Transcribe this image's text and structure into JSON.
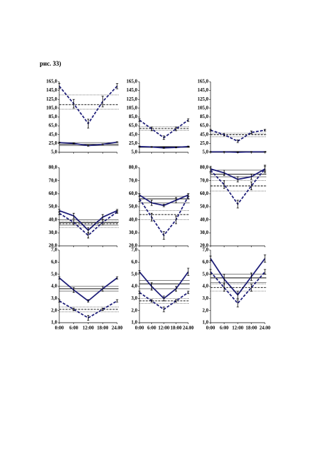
{
  "caption": "рис. 33)",
  "chart_data": [
    {
      "type": "line",
      "categories": [
        null,
        null,
        null,
        null,
        null
      ],
      "ylim": [
        5,
        165
      ],
      "yticks": [
        {
          "value": 5,
          "label": "5,0"
        },
        {
          "value": 25,
          "label": "25,0"
        },
        {
          "value": 45,
          "label": "45,0"
        },
        {
          "value": 65,
          "label": "65,0"
        },
        {
          "value": 85,
          "label": "85,0"
        },
        {
          "value": 105,
          "label": "105,0"
        },
        {
          "value": 125,
          "label": "125,0"
        },
        {
          "value": 145,
          "label": "145,0"
        },
        {
          "value": 165,
          "label": "165,0"
        }
      ],
      "series": [
        {
          "color": "#1f1f7a",
          "style": "dashed",
          "values": [
            155,
            115,
            70,
            120,
            155
          ],
          "errors": [
            6,
            10,
            10,
            12,
            6
          ],
          "hlines": [
            103,
            113,
            135
          ]
        },
        {
          "color": "#1f1f7a",
          "style": "solid",
          "values": [
            27,
            25,
            20,
            23,
            28
          ],
          "errors": [
            1,
            1,
            1,
            1,
            1
          ],
          "hlines": [
            20,
            23,
            27
          ]
        }
      ]
    },
    {
      "type": "line",
      "categories": [
        null,
        null,
        null,
        null,
        null
      ],
      "ylim": [
        5,
        165
      ],
      "yticks": [
        {
          "value": 5,
          "label": "5,0"
        },
        {
          "value": 25,
          "label": "25,0"
        },
        {
          "value": 45,
          "label": "45,0"
        },
        {
          "value": 65,
          "label": "65,0"
        },
        {
          "value": 85,
          "label": "85,0"
        },
        {
          "value": 105,
          "label": "105,0"
        },
        {
          "value": 125,
          "label": "125,0"
        },
        {
          "value": 145,
          "label": "145,0"
        },
        {
          "value": 165,
          "label": "165,0"
        }
      ],
      "series": [
        {
          "color": "#1f1f7a",
          "style": "dashed",
          "values": [
            78,
            58,
            38,
            58,
            78
          ],
          "errors": [
            3,
            4,
            4,
            4,
            3
          ],
          "hlines": [
            55,
            59,
            63
          ]
        },
        {
          "color": "#1f1f7a",
          "style": "solid",
          "values": [
            18,
            17,
            15,
            16,
            18
          ],
          "errors": [
            1,
            1,
            1,
            1,
            1
          ],
          "hlines": [
            16,
            17,
            18
          ]
        }
      ]
    },
    {
      "type": "line",
      "categories": [
        null,
        null,
        null,
        null,
        null
      ],
      "ylim": [
        5,
        165
      ],
      "yticks": [
        {
          "value": 5,
          "label": "5,0"
        },
        {
          "value": 25,
          "label": "25,0"
        },
        {
          "value": 45,
          "label": "45,0"
        },
        {
          "value": 65,
          "label": "65,0"
        },
        {
          "value": 85,
          "label": "85,0"
        },
        {
          "value": 105,
          "label": "105,0"
        },
        {
          "value": 125,
          "label": "125,0"
        },
        {
          "value": 145,
          "label": "145,0"
        },
        {
          "value": 165,
          "label": "165,0"
        }
      ],
      "series": [
        {
          "color": "#1f1f7a",
          "style": "dashed",
          "values": [
            55,
            45,
            30,
            50,
            55
          ],
          "errors": [
            2,
            3,
            3,
            3,
            2
          ],
          "hlines": [
            40,
            45,
            48
          ]
        },
        {
          "color": "#1f1f7a",
          "style": "solid",
          "values": [
            6,
            6,
            5,
            6,
            6
          ],
          "errors": [
            0.5,
            0.5,
            0.5,
            0.5,
            0.5
          ],
          "hlines": [
            5,
            6,
            7
          ]
        }
      ]
    },
    {
      "type": "line",
      "categories": [
        null,
        null,
        null,
        null,
        null
      ],
      "ylim": [
        20,
        80
      ],
      "yticks": [
        {
          "value": 20,
          "label": "20,0"
        },
        {
          "value": 30,
          "label": "30,0"
        },
        {
          "value": 40,
          "label": "40,0"
        },
        {
          "value": 50,
          "label": "50,0"
        },
        {
          "value": 60,
          "label": "60,0"
        },
        {
          "value": 70,
          "label": "70,0"
        },
        {
          "value": 80,
          "label": "80,0"
        }
      ],
      "series": [
        {
          "color": "#1f1f7a",
          "style": "solid",
          "values": [
            47,
            43,
            32,
            42,
            47
          ],
          "errors": [
            1,
            2,
            2,
            2,
            1
          ],
          "hlines": [
            36,
            38,
            40
          ]
        },
        {
          "color": "#1f1f7a",
          "style": "dashed",
          "values": [
            45,
            38,
            28,
            38,
            46
          ],
          "errors": [
            1,
            2,
            2,
            2,
            1
          ],
          "hlines": [
            34,
            37,
            39
          ]
        }
      ]
    },
    {
      "type": "line",
      "categories": [
        null,
        null,
        null,
        null,
        null
      ],
      "ylim": [
        20,
        80
      ],
      "yticks": [
        {
          "value": 20,
          "label": "20,0"
        },
        {
          "value": 30,
          "label": "30,0"
        },
        {
          "value": 40,
          "label": "40,0"
        },
        {
          "value": 50,
          "label": "50,0"
        },
        {
          "value": 60,
          "label": "60,0"
        },
        {
          "value": 70,
          "label": "70,0"
        },
        {
          "value": 80,
          "label": "80,0"
        }
      ],
      "series": [
        {
          "color": "#1f1f7a",
          "style": "solid",
          "values": [
            59,
            53,
            51,
            55,
            59
          ],
          "errors": [
            1,
            2,
            1,
            2,
            1
          ],
          "hlines": [
            53,
            56,
            58
          ]
        },
        {
          "color": "#1f1f7a",
          "style": "dashed",
          "values": [
            56,
            42,
            28,
            40,
            58
          ],
          "errors": [
            2,
            3,
            3,
            3,
            2
          ],
          "hlines": [
            40,
            44,
            47
          ]
        }
      ]
    },
    {
      "type": "line",
      "categories": [
        null,
        null,
        null,
        null,
        null
      ],
      "ylim": [
        20,
        80
      ],
      "yticks": [
        {
          "value": 20,
          "label": "20,0"
        },
        {
          "value": 30,
          "label": "30,0"
        },
        {
          "value": 40,
          "label": "40,0"
        },
        {
          "value": 50,
          "label": "50,0"
        },
        {
          "value": 60,
          "label": "60,0"
        },
        {
          "value": 70,
          "label": "70,0"
        },
        {
          "value": 80,
          "label": "80,0"
        }
      ],
      "series": [
        {
          "color": "#1f1f7a",
          "style": "solid",
          "values": [
            79,
            76,
            71,
            73,
            79
          ],
          "errors": [
            2,
            2,
            2,
            2,
            3
          ],
          "hlines": [
            73,
            75,
            78
          ]
        },
        {
          "color": "#1f1f7a",
          "style": "dashed",
          "values": [
            78,
            67,
            52,
            66,
            79
          ],
          "errors": [
            2,
            3,
            3,
            3,
            2
          ],
          "hlines": [
            62,
            66,
            70
          ]
        }
      ]
    },
    {
      "type": "line",
      "categories": [
        "0:00",
        "6:00",
        "12:00",
        "18:00",
        "24.00"
      ],
      "ylim": [
        1,
        7
      ],
      "yticks": [
        {
          "value": 1,
          "label": "1,0"
        },
        {
          "value": 2,
          "label": "2,0"
        },
        {
          "value": 3,
          "label": "3,0"
        },
        {
          "value": 4,
          "label": "4,0"
        },
        {
          "value": 5,
          "label": "5,0"
        },
        {
          "value": 6,
          "label": "6,0"
        },
        {
          "value": 7,
          "label": "7,0"
        }
      ],
      "series": [
        {
          "color": "#1f1f7a",
          "style": "solid",
          "values": [
            4.7,
            3.7,
            2.8,
            3.8,
            4.7
          ],
          "errors": [
            0.1,
            0.2,
            0.1,
            0.2,
            0.1
          ],
          "hlines": [
            3.6,
            3.8,
            4.0
          ]
        },
        {
          "color": "#1f1f7a",
          "style": "dashed",
          "values": [
            2.8,
            2.1,
            1.4,
            2.1,
            2.8
          ],
          "errors": [
            0.1,
            0.1,
            0.2,
            0.1,
            0.1
          ],
          "hlines": [
            1.9,
            2.1,
            2.3
          ]
        }
      ]
    },
    {
      "type": "line",
      "categories": [
        "0:00",
        "6:00",
        "12:00",
        "18:00",
        "24.00"
      ],
      "ylim": [
        1,
        7
      ],
      "yticks": [
        {
          "value": 1,
          "label": "1,0"
        },
        {
          "value": 2,
          "label": "2,0"
        },
        {
          "value": 3,
          "label": "3,0"
        },
        {
          "value": 4,
          "label": "4,0"
        },
        {
          "value": 5,
          "label": "5,0"
        },
        {
          "value": 6,
          "label": "6,0"
        },
        {
          "value": 7,
          "label": "7,0"
        }
      ],
      "series": [
        {
          "color": "#1f1f7a",
          "style": "solid",
          "values": [
            5.2,
            4.0,
            3.0,
            3.8,
            5.2
          ],
          "errors": [
            0.1,
            0.3,
            0.2,
            0.2,
            0.3
          ],
          "hlines": [
            3.8,
            4.2,
            4.5
          ]
        },
        {
          "color": "#1f1f7a",
          "style": "dashed",
          "values": [
            3.5,
            2.8,
            2.1,
            2.8,
            3.5
          ],
          "errors": [
            0.1,
            0.1,
            0.2,
            0.1,
            0.1
          ],
          "hlines": [
            2.6,
            2.8,
            3.0
          ]
        }
      ]
    },
    {
      "type": "line",
      "categories": [
        "0:00",
        "6:00",
        "12:00",
        "18:00",
        "24.00"
      ],
      "ylim": [
        1,
        7
      ],
      "yticks": [
        {
          "value": 1,
          "label": "1,0"
        },
        {
          "value": 2,
          "label": "2,0"
        },
        {
          "value": 3,
          "label": "3,0"
        },
        {
          "value": 4,
          "label": "4,0"
        },
        {
          "value": 5,
          "label": "5,0"
        },
        {
          "value": 6,
          "label": "6,0"
        },
        {
          "value": 7,
          "label": "7,0"
        }
      ],
      "series": [
        {
          "color": "#1f1f7a",
          "style": "solid",
          "values": [
            6.3,
            4.6,
            3.3,
            4.8,
            6.3
          ],
          "errors": [
            0.2,
            0.4,
            0.3,
            0.3,
            0.3
          ],
          "hlines": [
            4.3,
            4.7,
            5.0
          ]
        },
        {
          "color": "#1f1f7a",
          "style": "dashed",
          "values": [
            5.2,
            3.9,
            2.6,
            3.9,
            5.2
          ],
          "errors": [
            0.2,
            0.3,
            0.3,
            0.3,
            0.2
          ],
          "hlines": [
            3.6,
            3.9,
            4.2
          ]
        }
      ]
    }
  ]
}
